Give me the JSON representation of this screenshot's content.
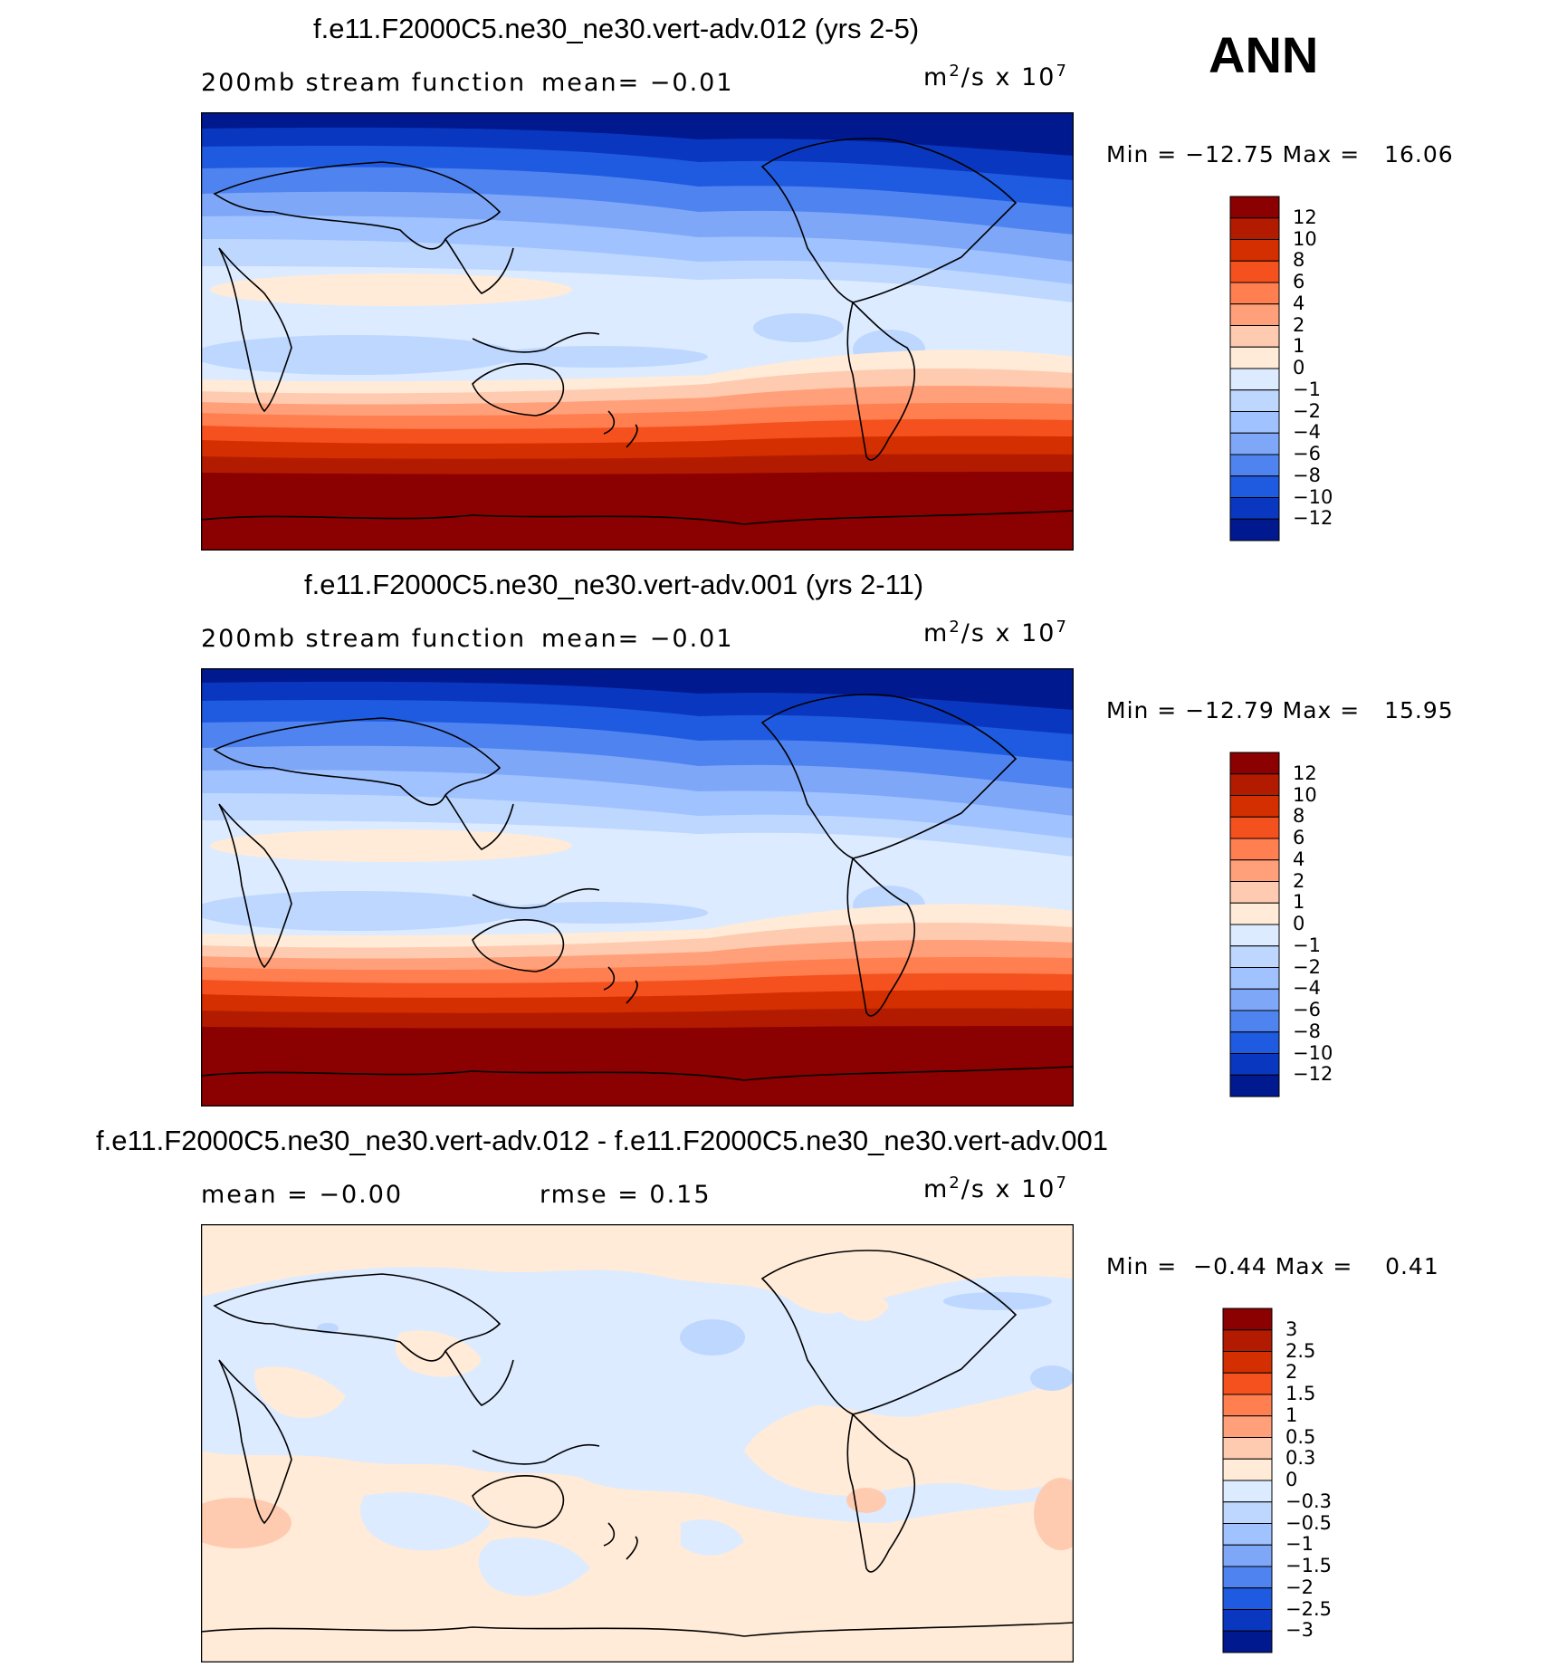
{
  "season": "ANN",
  "panels": [
    {
      "title": "f.e11.F2000C5.ne30_ne30.vert-adv.012 (yrs 2-5)",
      "variable": "200mb stream function",
      "stat_text": "mean=   −0.01",
      "units": "m²/s x 10⁷",
      "minmax": "Min = −12.75 Max =   16.06",
      "colorbar": {
        "labels": [
          "12",
          "10",
          "8",
          "6",
          "4",
          "2",
          "1",
          "0",
          "−1",
          "−2",
          "−4",
          "−6",
          "−8",
          "−10",
          "−12"
        ],
        "colors": [
          "#8B0000",
          "#B31B00",
          "#D32F00",
          "#F4511E",
          "#FF7F50",
          "#FFA07A",
          "#FFCBB0",
          "#FFEBD8",
          "#DCEBFF",
          "#BDD7FF",
          "#A0C2FF",
          "#7FA7F8",
          "#4F83F0",
          "#1F5BE0",
          "#0A37C0",
          "#00198F"
        ]
      }
    },
    {
      "title": "f.e11.F2000C5.ne30_ne30.vert-adv.001 (yrs 2-11)",
      "variable": "200mb stream function",
      "stat_text": "mean=   −0.01",
      "units": "m²/s x 10⁷",
      "minmax": "Min = −12.79 Max =   15.95",
      "colorbar": {
        "labels": [
          "12",
          "10",
          "8",
          "6",
          "4",
          "2",
          "1",
          "0",
          "−1",
          "−2",
          "−4",
          "−6",
          "−8",
          "−10",
          "−12"
        ],
        "colors": [
          "#8B0000",
          "#B31B00",
          "#D32F00",
          "#F4511E",
          "#FF7F50",
          "#FFA07A",
          "#FFCBB0",
          "#FFEBD8",
          "#DCEBFF",
          "#BDD7FF",
          "#A0C2FF",
          "#7FA7F8",
          "#4F83F0",
          "#1F5BE0",
          "#0A37C0",
          "#00198F"
        ]
      }
    },
    {
      "title": "f.e11.F2000C5.ne30_ne30.vert-adv.012 - f.e11.F2000C5.ne30_ne30.vert-adv.001",
      "mean_text": "mean =   −0.00",
      "rmse_text": "rmse =    0.15",
      "units": "m²/s x 10⁷",
      "minmax": "Min =  −0.44 Max =    0.41",
      "colorbar": {
        "labels": [
          "3",
          "2.5",
          "2",
          "1.5",
          "1",
          "0.5",
          "0.3",
          "0",
          "−0.3",
          "−0.5",
          "−1",
          "−1.5",
          "−2",
          "−2.5",
          "−3"
        ],
        "colors": [
          "#8B0000",
          "#B31B00",
          "#D32F00",
          "#F4511E",
          "#FF7F50",
          "#FFA07A",
          "#FFCBB0",
          "#FFEBD8",
          "#DCEBFF",
          "#BDD7FF",
          "#A0C2FF",
          "#7FA7F8",
          "#4F83F0",
          "#1F5BE0",
          "#0A37C0",
          "#00198F"
        ]
      }
    }
  ]
}
